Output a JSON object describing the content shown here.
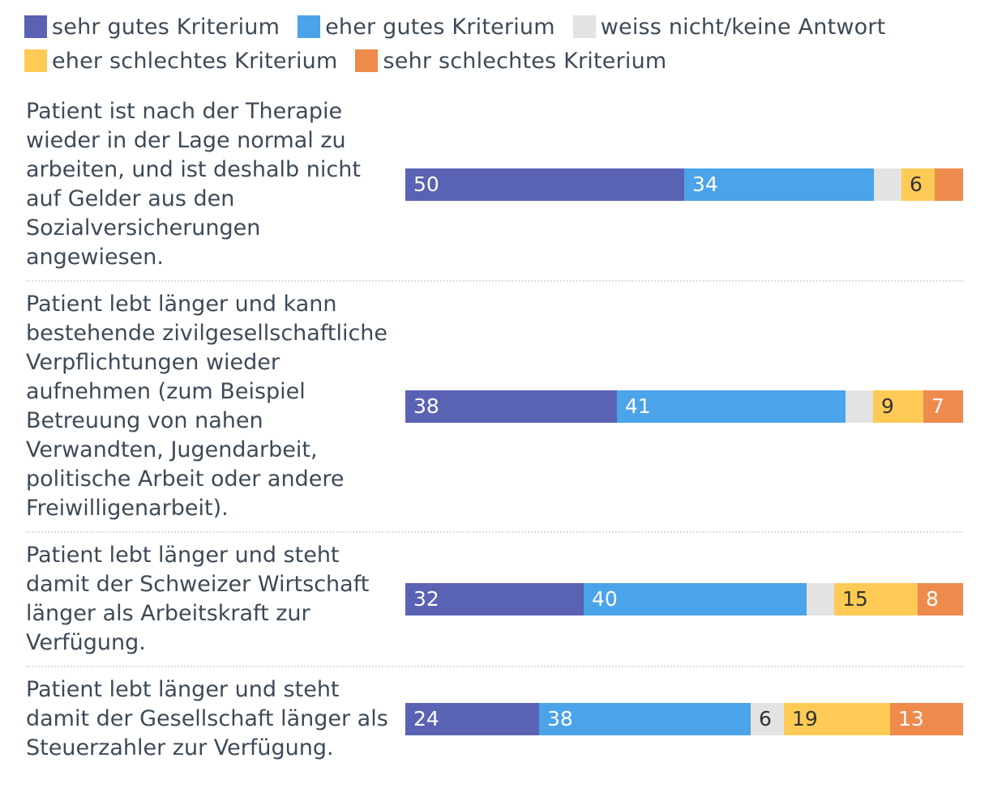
{
  "chart_data": {
    "type": "bar",
    "orientation": "horizontal",
    "stacked": true,
    "legend_position": "top",
    "series": [
      {
        "name": "sehr gutes Kriterium",
        "color": "#5a62b3",
        "label_color": "#ffffff",
        "values": [
          50,
          38,
          32,
          24
        ]
      },
      {
        "name": "eher gutes Kriterium",
        "color": "#4ba3ea",
        "label_color": "#ffffff",
        "values": [
          34,
          41,
          40,
          38
        ]
      },
      {
        "name": "weiss nicht/keine Antwort",
        "color": "#e3e3e3",
        "label_color": "#333333",
        "values": [
          5,
          5,
          5,
          6
        ]
      },
      {
        "name": "eher schlechtes Kriterium",
        "color": "#fdcb55",
        "label_color": "#333333",
        "values": [
          6,
          9,
          15,
          19
        ]
      },
      {
        "name": "sehr schlechtes Kriterium",
        "color": "#ef8a4d",
        "label_color": "#ffffff",
        "values": [
          5,
          7,
          8,
          13
        ]
      }
    ],
    "shown_labels": [
      [
        "50",
        "34",
        "",
        "6",
        ""
      ],
      [
        "38",
        "41",
        "",
        "9",
        "7"
      ],
      [
        "32",
        "40",
        "",
        "15",
        "8"
      ],
      [
        "24",
        "38",
        "6",
        "19",
        "13"
      ]
    ],
    "categories": [
      "Patient ist nach der Therapie wieder in der Lage normal zu arbeiten, und ist deshalb nicht auf Gelder aus den Sozialversicherungen angewiesen.",
      "Patient lebt länger und kann bestehende zivilgesellschaftliche Verpflichtungen wieder aufnehmen (zum Beispiel Betreuung von nahen Verwandten, Jugendarbeit, politische Arbeit oder andere Freiwilligenarbeit).",
      "Patient lebt länger und steht damit der Schweizer Wirtschaft länger als Arbeitskraft zur Verfügung.",
      "Patient lebt länger und steht damit der Gesellschaft länger als Steuerzahler zur Verfügung."
    ]
  }
}
